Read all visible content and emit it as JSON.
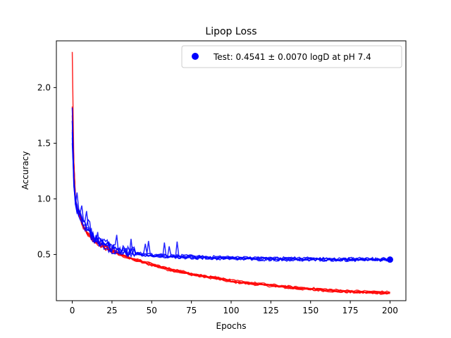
{
  "chart_data": {
    "type": "line",
    "title": "Lipop Loss",
    "xlabel": "Epochs",
    "ylabel": "Accuracy",
    "xlim": [
      -10,
      210
    ],
    "ylim": [
      0.085,
      2.42
    ],
    "x_ticks": [
      0,
      25,
      50,
      75,
      100,
      125,
      150,
      175,
      200
    ],
    "y_ticks": [
      0.5,
      1.0,
      1.5,
      2.0
    ],
    "x_tick_labels": [
      "0",
      "25",
      "50",
      "75",
      "100",
      "125",
      "150",
      "175",
      "200"
    ],
    "y_tick_labels": [
      "0.5",
      "1.0",
      "1.5",
      "2.0"
    ],
    "grid": false,
    "legend": {
      "placement": "top-right",
      "entries": [
        {
          "label": "Test: 0.4541 ± 0.0070 logD at pH 7.4",
          "marker": "circle",
          "color": "#0000ff"
        }
      ]
    },
    "test_point": {
      "x": 200,
      "y": 0.4541
    },
    "series_groups": [
      {
        "color": "#ff0000",
        "role": "train",
        "runs": 5,
        "x": [
          0,
          1,
          2,
          3,
          4,
          5,
          6,
          8,
          10,
          12,
          15,
          20,
          25,
          30,
          40,
          50,
          60,
          70,
          80,
          90,
          100,
          110,
          120,
          130,
          140,
          150,
          160,
          170,
          180,
          190,
          200
        ],
        "y": [
          2.0,
          1.3,
          1.0,
          0.93,
          0.88,
          0.83,
          0.78,
          0.72,
          0.68,
          0.65,
          0.61,
          0.57,
          0.53,
          0.5,
          0.45,
          0.41,
          0.37,
          0.34,
          0.31,
          0.29,
          0.26,
          0.245,
          0.23,
          0.215,
          0.2,
          0.19,
          0.18,
          0.17,
          0.165,
          0.16,
          0.155
        ],
        "first_values": [
          2.32,
          1.83,
          1.75,
          1.62,
          1.7
        ]
      },
      {
        "color": "#0000ff",
        "role": "validation",
        "runs": 5,
        "x": [
          0,
          1,
          2,
          3,
          4,
          5,
          6,
          8,
          10,
          12,
          15,
          20,
          25,
          30,
          40,
          50,
          60,
          70,
          80,
          90,
          100,
          110,
          120,
          130,
          140,
          150,
          160,
          170,
          180,
          190,
          200
        ],
        "y": [
          1.55,
          1.15,
          0.95,
          0.9,
          0.87,
          0.84,
          0.81,
          0.76,
          0.71,
          0.67,
          0.63,
          0.59,
          0.56,
          0.54,
          0.51,
          0.49,
          0.485,
          0.48,
          0.475,
          0.47,
          0.468,
          0.465,
          0.462,
          0.46,
          0.458,
          0.457,
          0.456,
          0.455,
          0.455,
          0.455,
          0.455
        ],
        "first_values": [
          1.82,
          1.7,
          1.6,
          1.5,
          1.55
        ]
      }
    ]
  }
}
